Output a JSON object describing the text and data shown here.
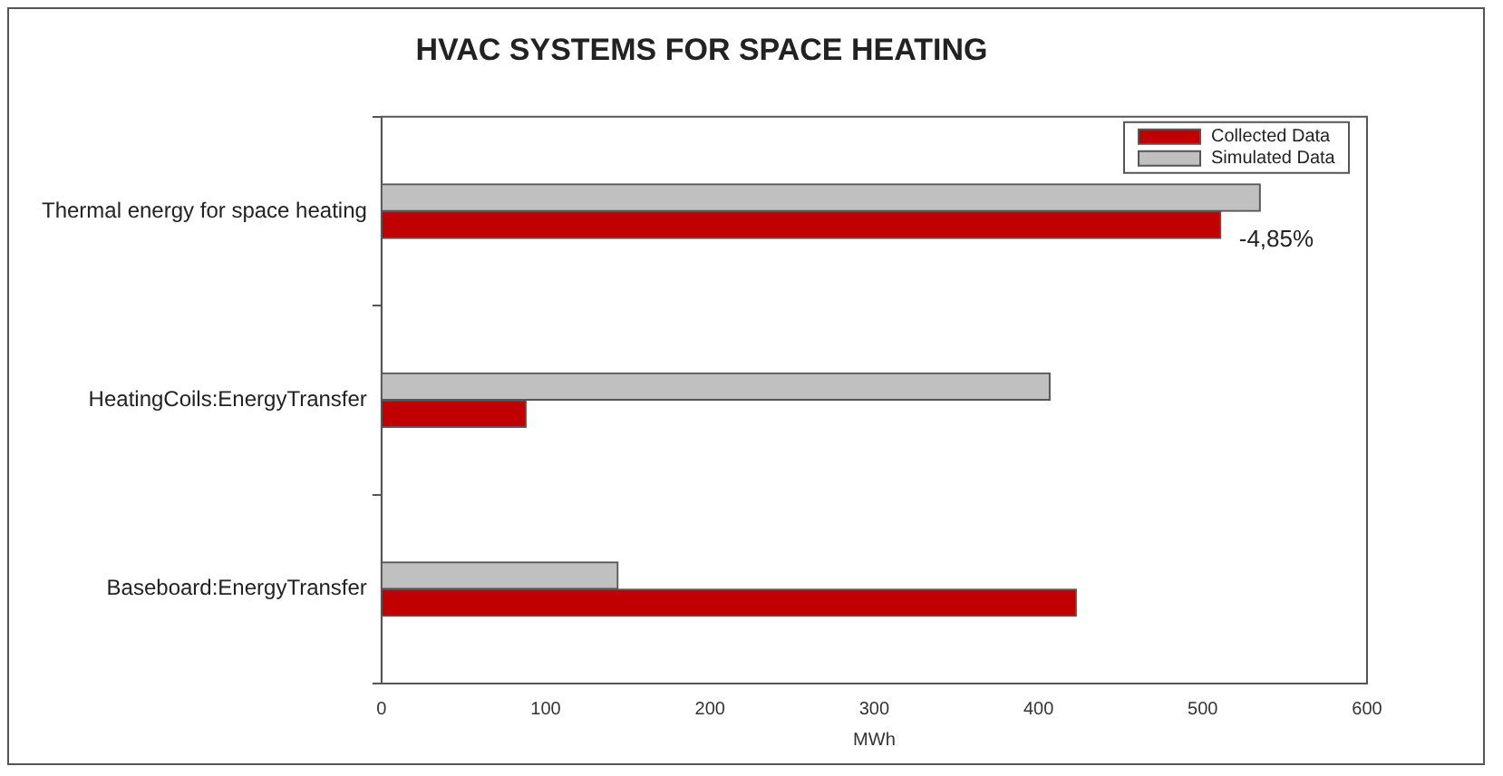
{
  "chart_data": {
    "type": "bar",
    "orientation": "horizontal",
    "title": "HVAC SYSTEMS FOR SPACE HEATING",
    "xlabel": "MWh",
    "categories": [
      "Thermal energy for space heating",
      "HeatingCoils:EnergyTransfer",
      "Baseboard:EnergyTransfer"
    ],
    "series": [
      {
        "name": "Collected Data",
        "color": "#c00000",
        "values": [
          511,
          88,
          423
        ]
      },
      {
        "name": "Simulated Data",
        "color": "#c0c0c0",
        "values": [
          535,
          407,
          144
        ]
      }
    ],
    "xlim": [
      0,
      600
    ],
    "xticks": [
      0,
      100,
      200,
      300,
      400,
      500,
      600
    ],
    "grid": false,
    "legend": "top right",
    "annotations": [
      {
        "text": "-4,85%",
        "x": 511,
        "y": "Thermal energy for space heating"
      }
    ]
  }
}
